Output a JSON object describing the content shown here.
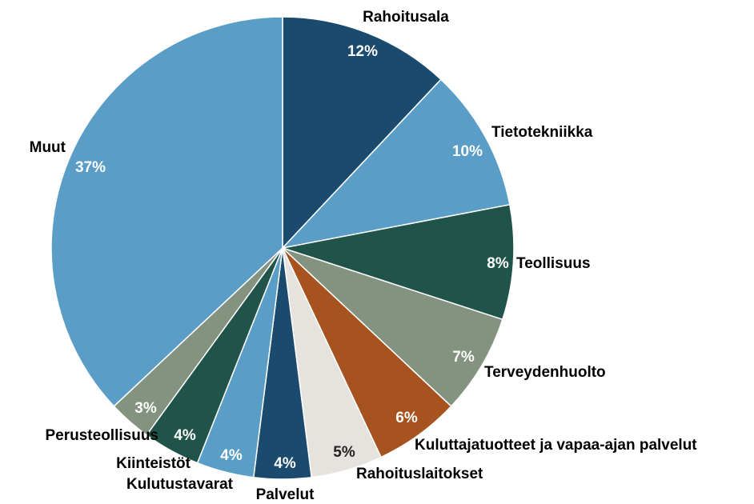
{
  "chart_data": {
    "type": "pie",
    "categories": [
      "Rahoitusala",
      "Tietotekniikka",
      "Teollisuus",
      "Terveydenhuolto",
      "Kuluttajatuotteet ja vapaa-ajan palvelut",
      "Rahoituslaitokset",
      "Palvelut",
      "Kulutustavarat",
      "Kiinteistöt",
      "Perusteollisuus",
      "Muut"
    ],
    "values": [
      12,
      10,
      8,
      7,
      6,
      5,
      4,
      4,
      4,
      3,
      37
    ],
    "value_labels": [
      "12%",
      "10%",
      "8%",
      "7%",
      "6%",
      "5%",
      "4%",
      "4%",
      "4%",
      "3%",
      "37%"
    ],
    "colors": [
      "#1a4b6e",
      "#5a9ec8",
      "#20544a",
      "#84937f",
      "#a7531f",
      "#e6e2dd",
      "#1a4b6e",
      "#5a9ec8",
      "#20544a",
      "#84937f",
      "#5a9ec8"
    ]
  }
}
